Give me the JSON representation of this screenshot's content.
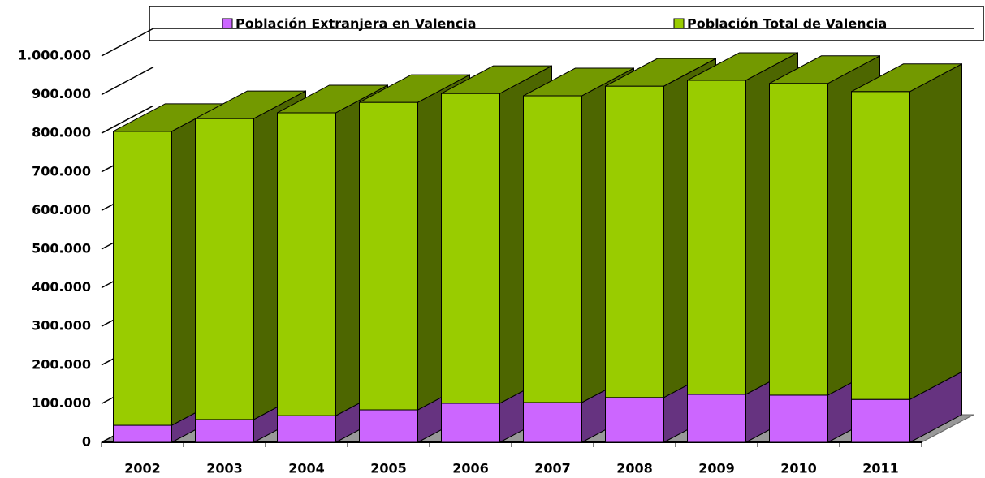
{
  "chart_data": {
    "type": "bar3d_stacked",
    "categories": [
      "2002",
      "2003",
      "2004",
      "2005",
      "2006",
      "2007",
      "2008",
      "2009",
      "2010",
      "2011"
    ],
    "series": [
      {
        "name": "Población Extranjera en Valencia",
        "color": "#cc66ff",
        "values": [
          44000,
          59000,
          69000,
          84000,
          101000,
          103000,
          116000,
          124000,
          122000,
          111000
        ]
      },
      {
        "name": "Población Total de Valencia",
        "color": "#99cc00",
        "values": [
          761000,
          779000,
          784000,
          796000,
          802000,
          794000,
          806000,
          813000,
          807000,
          797000
        ]
      }
    ],
    "ylim": [
      0,
      1000000
    ],
    "yticks": [
      0,
      {
        "value": 100000,
        "label": "100.000"
      },
      {
        "value": 200000,
        "label": "200.000"
      },
      {
        "value": 300000,
        "label": "300.000"
      },
      {
        "value": 400000,
        "label": "400.000"
      },
      {
        "value": 500000,
        "label": "500.000"
      },
      {
        "value": 600000,
        "label": "600.000"
      },
      {
        "value": 700000,
        "label": "700.000"
      },
      {
        "value": 800000,
        "label": "800.000"
      },
      {
        "value": 900000,
        "label": "900.000"
      },
      {
        "value": 1000000,
        "label": "1.000.000"
      }
    ],
    "legend": "top"
  }
}
